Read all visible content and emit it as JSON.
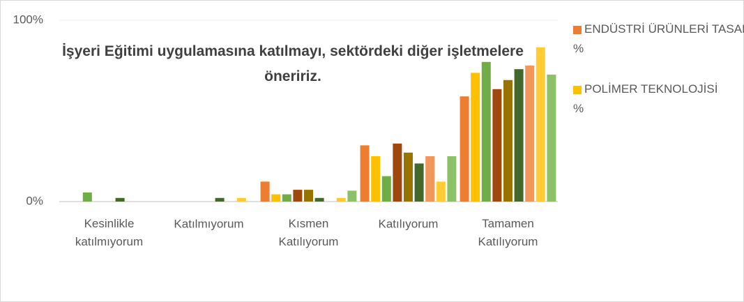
{
  "chart_data": {
    "type": "bar",
    "title": "İşyeri Eğitimi uygulamasına katılmayı, sektördeki diğer işletmelere öneririz.",
    "categories": [
      "Kesinlikle katılmıyorum",
      "Katılmıyorum",
      "Kısmen Katılıyorum",
      "Katılıyorum",
      "Tamamen Katılıyorum"
    ],
    "series": [
      {
        "name": "ENDÜSTRİ ÜRÜNLERİ TASARIMI %",
        "color": "#ED7D31",
        "values": [
          0,
          0,
          11,
          31,
          58
        ]
      },
      {
        "name": "POLİMER TEKNOLOJİSİ %",
        "color": "#FFC000",
        "values": [
          0,
          0,
          4,
          25,
          71
        ]
      },
      {
        "color": "#70AD47",
        "values": [
          5,
          0,
          4,
          14,
          77
        ]
      },
      {
        "color": "#9E480E",
        "values": [
          0,
          0,
          6.5,
          32,
          62
        ]
      },
      {
        "color": "#997300",
        "values": [
          0,
          0,
          6.5,
          27,
          67
        ]
      },
      {
        "color": "#43682B",
        "values": [
          2,
          2,
          2,
          21,
          73
        ]
      },
      {
        "color": "#F1975A",
        "values": [
          0,
          0,
          0,
          25,
          75
        ]
      },
      {
        "color": "#FFCD33",
        "values": [
          0,
          2,
          2,
          11,
          85
        ]
      },
      {
        "color": "#8CC168",
        "values": [
          0,
          0,
          6,
          25,
          70
        ]
      }
    ],
    "ylim": [
      0,
      100
    ],
    "yticks": [
      {
        "value": 0,
        "label": "0%"
      },
      {
        "value": 100,
        "label": "100%"
      }
    ],
    "legend": "right"
  }
}
